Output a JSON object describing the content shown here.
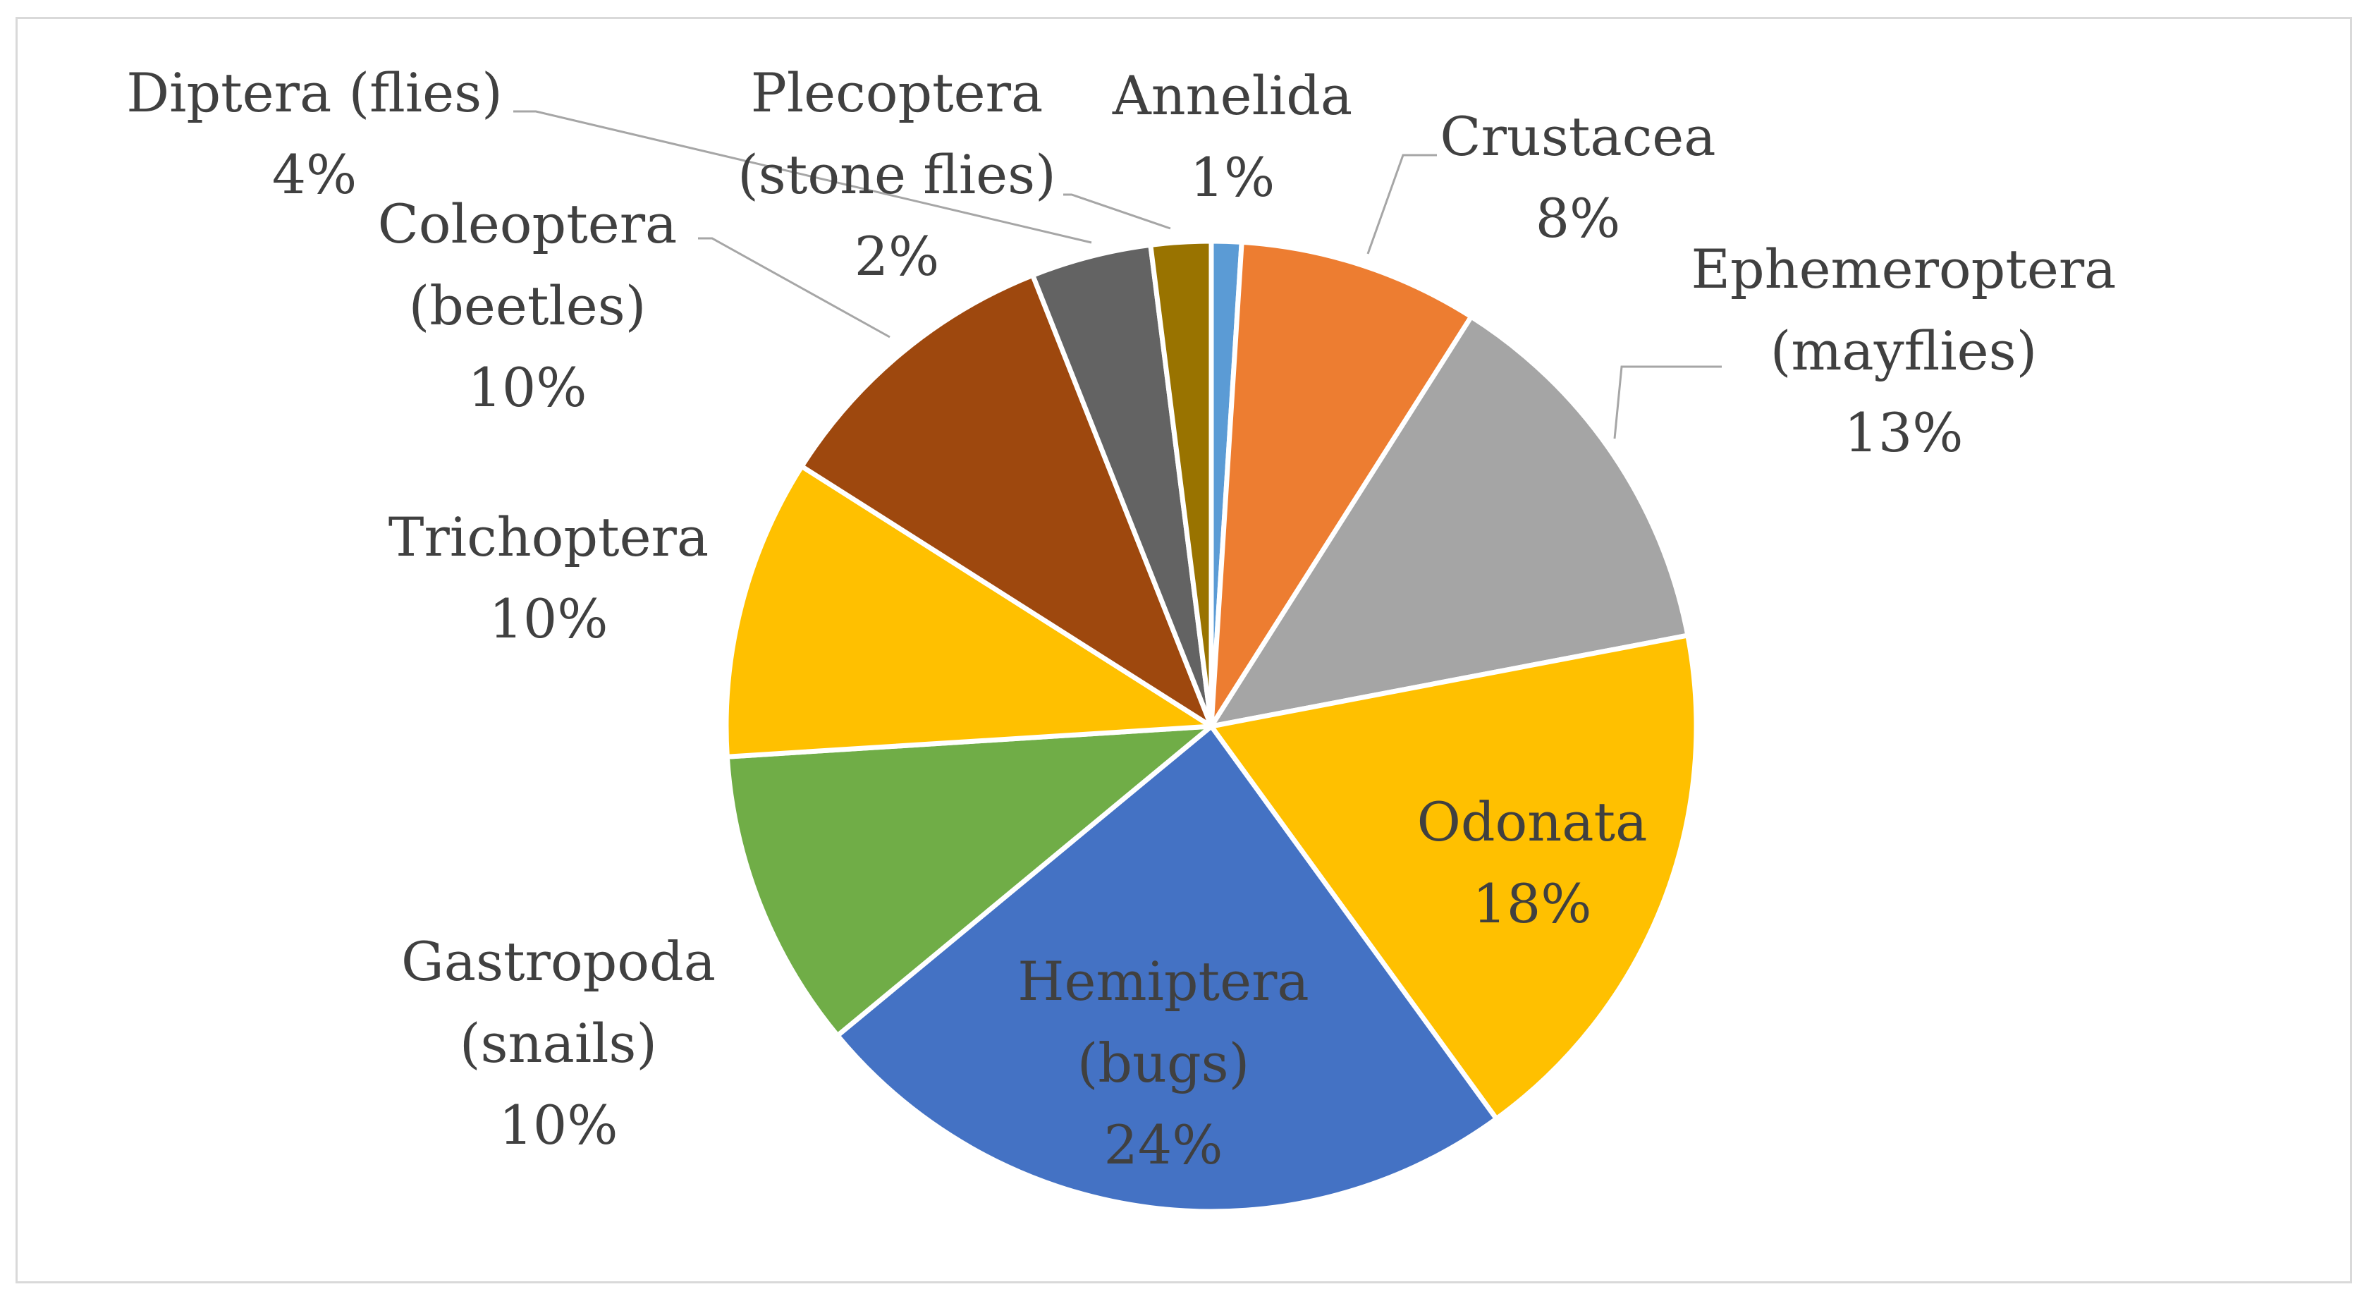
{
  "chart_data": {
    "type": "pie",
    "title": "",
    "slices": [
      {
        "label": "Annelida",
        "label_lines": [
          "Annelida",
          "1%"
        ],
        "value": 1,
        "color": "#5b9bd5",
        "label_color": "#404040"
      },
      {
        "label": "Crustacea",
        "label_lines": [
          "Crustacea",
          "8%"
        ],
        "value": 8,
        "color": "#ed7d31",
        "label_color": "#404040"
      },
      {
        "label": "Ephemeroptera (mayflies)",
        "label_lines": [
          "Ephemeroptera",
          "(mayflies)",
          "13%"
        ],
        "value": 13,
        "color": "#a5a5a5",
        "label_color": "#404040"
      },
      {
        "label": "Odonata",
        "label_lines": [
          "Odonata",
          "18%"
        ],
        "value": 18,
        "color": "#ffc000",
        "label_color": "#404040"
      },
      {
        "label": "Hemiptera (bugs)",
        "label_lines": [
          "Hemiptera",
          "(bugs)",
          "24%"
        ],
        "value": 24,
        "color": "#4472c4",
        "label_color": "#404040"
      },
      {
        "label": "Gastropoda (snails)",
        "label_lines": [
          "Gastropoda",
          "(snails)",
          "10%"
        ],
        "value": 10,
        "color": "#70ad47",
        "label_color": "#404040"
      },
      {
        "label": "Trichoptera",
        "label_lines": [
          "Trichoptera",
          "10%"
        ],
        "value": 10,
        "color": "#ffc000",
        "label_color": "#404040"
      },
      {
        "label": "Coleoptera (beetles)",
        "label_lines": [
          "Coleoptera",
          "(beetles)",
          "10%"
        ],
        "value": 10,
        "color": "#9e480e",
        "label_color": "#404040"
      },
      {
        "label": "Diptera (flies)",
        "label_lines": [
          "Diptera (flies)",
          "4%"
        ],
        "value": 4,
        "color": "#636363",
        "label_color": "#404040"
      },
      {
        "label": "Plecoptera (stone flies)",
        "label_lines": [
          "Plecoptera",
          "(stone flies)",
          "2%"
        ],
        "value": 2,
        "color": "#997300",
        "label_color": "#404040"
      }
    ],
    "legend": "none",
    "data_labels": "category name and percentage",
    "start_angle": "12 o'clock, clockwise"
  }
}
